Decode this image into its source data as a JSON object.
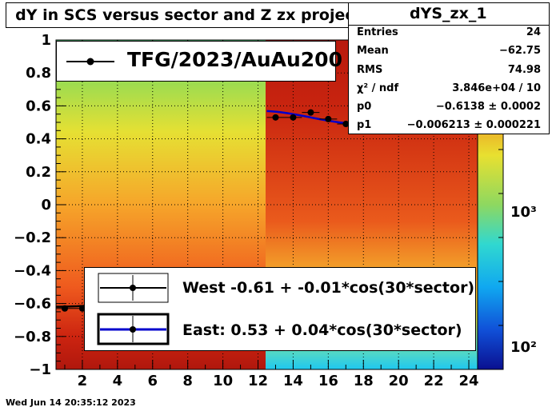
{
  "title": "dY in SCS versus sector and Z zx projection",
  "footer_date": "Wed Jun 14 20:35:12 2023",
  "stats": {
    "name": "dYS_zx_1",
    "rows": [
      {
        "k": "Entries",
        "v": "24"
      },
      {
        "k": "Mean",
        "v": "−62.75"
      },
      {
        "k": "RMS",
        "v": "74.98"
      },
      {
        "k": "χ² / ndf",
        "v": "3.846e+04 / 10"
      },
      {
        "k": "p0",
        "v": "−0.6138 ± 0.0002"
      },
      {
        "k": "p1",
        "v": "−0.006213 ± 0.000221"
      }
    ]
  },
  "legend_top": {
    "label": "TFG/2023/AuAu200"
  },
  "legend_fits": {
    "west": "West -0.61 + -0.01*cos(30*sector)",
    "east": "East:  0.53 +  0.04*cos(30*sector)"
  },
  "colors": {
    "west_fit": "#000000",
    "east_fit": "#0000cc",
    "points": "#000000"
  },
  "chart_data": {
    "type": "heatmap",
    "xlim": [
      0.5,
      24.5
    ],
    "ylim": [
      -1,
      1
    ],
    "x_ticks": [
      "2",
      "4",
      "6",
      "8",
      "10",
      "12",
      "14",
      "16",
      "18",
      "20",
      "22",
      "24"
    ],
    "y_ticks": [
      "1",
      "0.8",
      "0.6",
      "0.4",
      "0.2",
      "0",
      "−0.2",
      "−0.4",
      "−0.6",
      "−0.8",
      "−1"
    ],
    "z_scale": "log",
    "z_ticks": [
      "10³",
      "10²"
    ],
    "points": [
      {
        "x": 1,
        "y": -0.63
      },
      {
        "x": 2,
        "y": -0.63
      },
      {
        "x": 13,
        "y": 0.53
      },
      {
        "x": 14,
        "y": 0.53
      },
      {
        "x": 15,
        "y": 0.56
      },
      {
        "x": 16,
        "y": 0.52
      },
      {
        "x": 17,
        "y": 0.49
      }
    ],
    "fits": [
      {
        "name": "West",
        "p0": -0.61,
        "p1": -0.01,
        "x": [
          0.5,
          12.5
        ]
      },
      {
        "name": "East",
        "p0": 0.53,
        "p1": 0.04,
        "x": [
          12.5,
          24.5
        ]
      }
    ]
  }
}
